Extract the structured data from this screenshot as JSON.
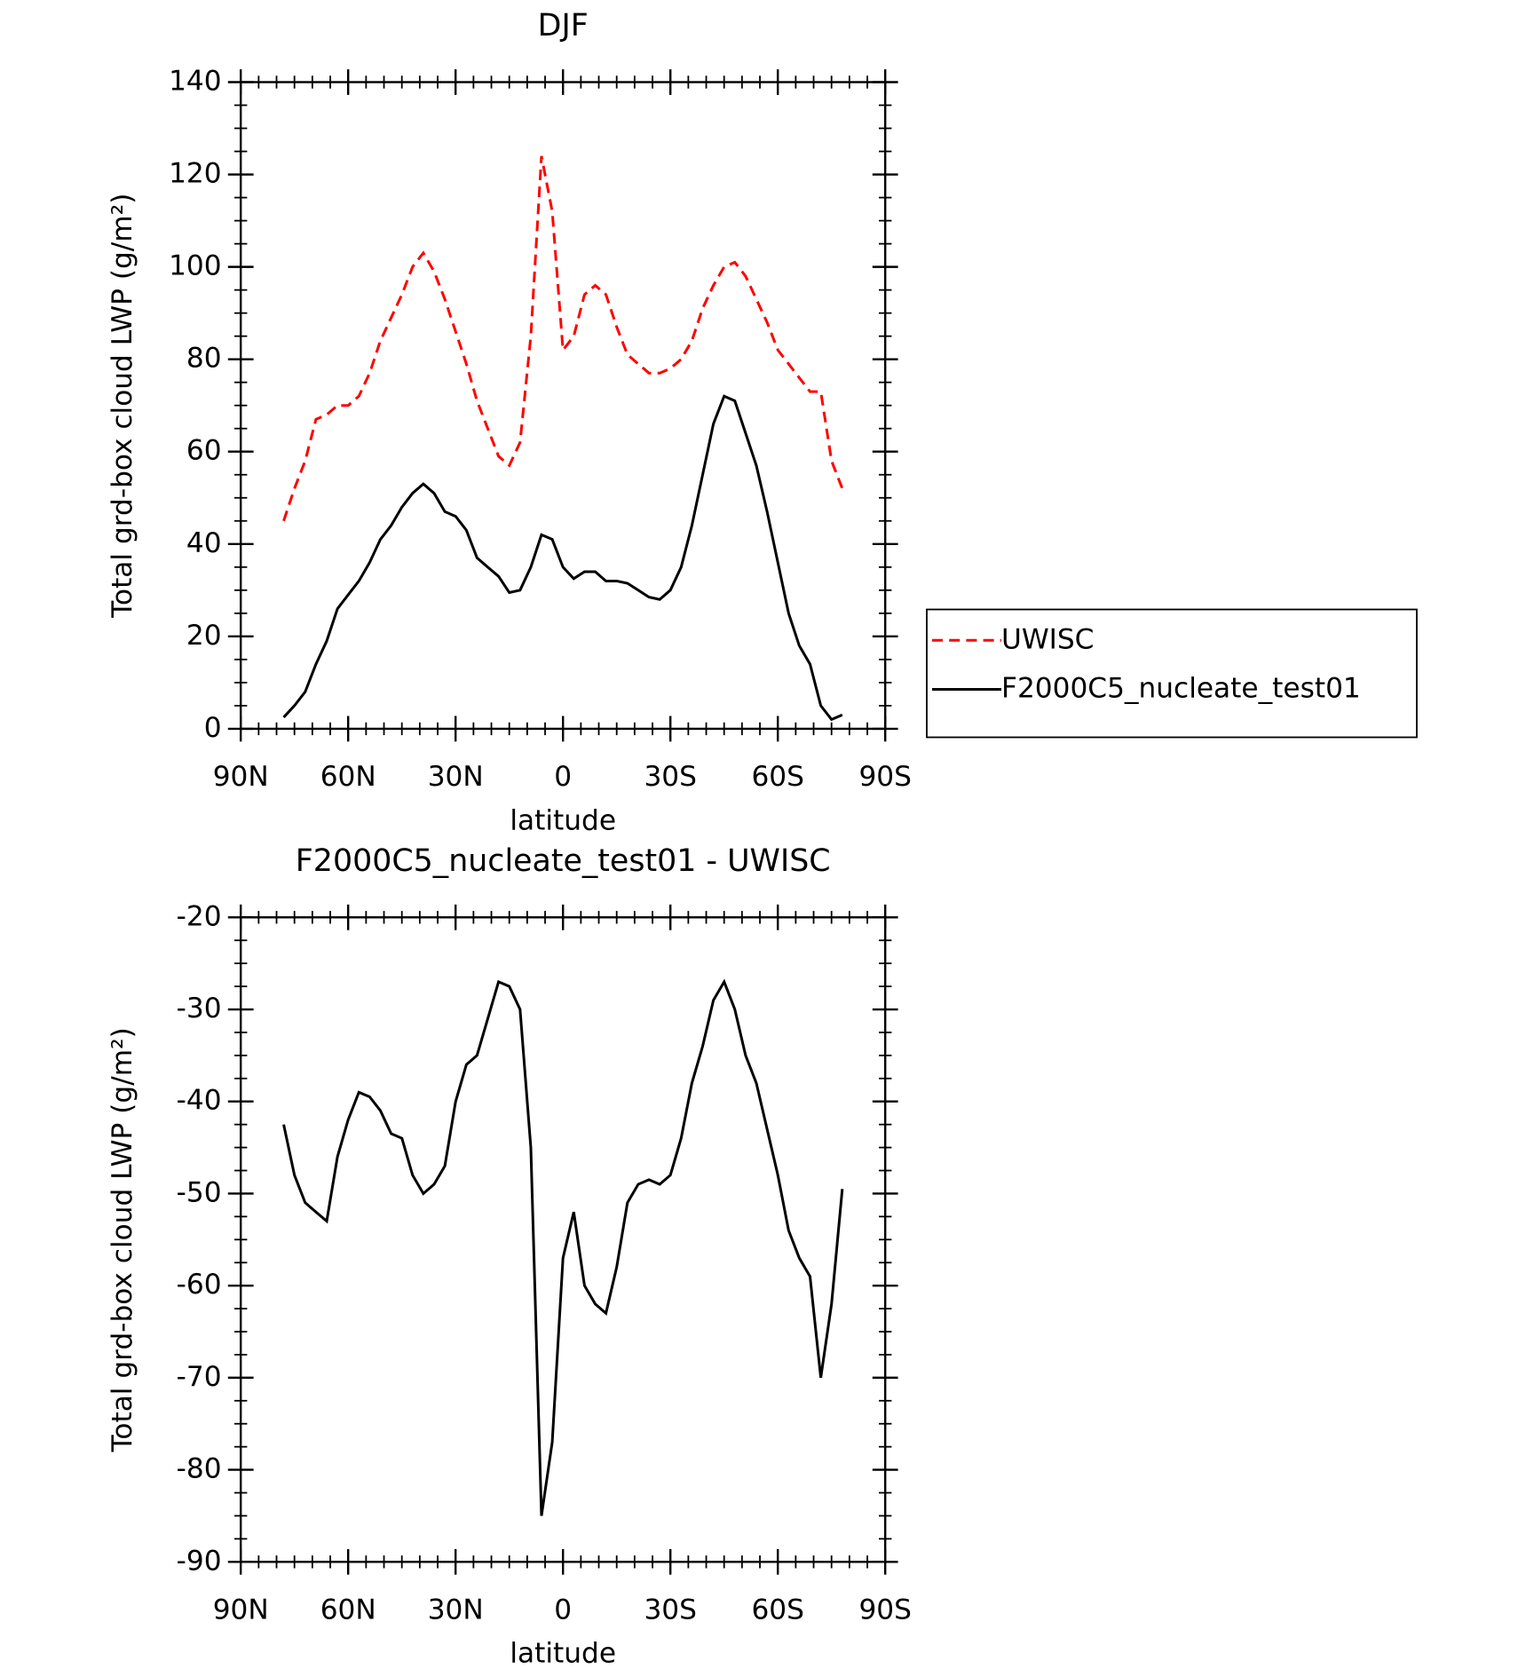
{
  "chart_data": [
    {
      "type": "line",
      "title": "DJF",
      "x_label": "latitude",
      "y_label": "Total grd-box cloud LWP (g/m²)",
      "x": [
        78,
        75,
        72,
        69,
        66,
        63,
        60,
        57,
        54,
        51,
        48,
        45,
        42,
        39,
        36,
        33,
        30,
        27,
        24,
        21,
        18,
        15,
        12,
        9,
        6,
        3,
        0,
        -3,
        -6,
        -9,
        -12,
        -15,
        -18,
        -21,
        -24,
        -27,
        -30,
        -33,
        -36,
        -39,
        -42,
        -45,
        -48,
        -51,
        -54,
        -57,
        -60,
        -63,
        -66,
        -69,
        -72,
        -75,
        -78
      ],
      "xlim": [
        90,
        -90
      ],
      "xticks": [
        {
          "value": 90,
          "label": "90N"
        },
        {
          "value": 60,
          "label": "60N"
        },
        {
          "value": 30,
          "label": "30N"
        },
        0,
        {
          "value": -30,
          "label": "30S"
        },
        {
          "value": -60,
          "label": "60S"
        },
        {
          "value": -90,
          "label": "90S"
        }
      ],
      "ylim": [
        0,
        140
      ],
      "yticks": [
        0,
        20,
        40,
        60,
        80,
        100,
        120,
        140
      ],
      "legend": "right",
      "series": [
        {
          "name": "UWISC",
          "color": "#ff0000",
          "style": "dashed",
          "values": [
            45,
            52,
            58,
            67,
            68,
            70,
            70,
            72,
            77,
            84,
            89,
            94,
            100,
            103,
            99,
            93,
            86,
            79,
            71,
            65,
            59,
            57,
            62,
            85,
            124,
            112,
            82,
            85,
            94,
            96,
            94,
            87,
            81,
            79,
            77,
            77,
            78,
            80,
            84,
            91,
            96,
            100,
            101,
            98,
            93,
            88,
            82,
            79,
            76,
            73,
            73,
            58,
            52
          ]
        },
        {
          "name": "F2000C5_nucleate_test01",
          "color": "#000000",
          "style": "solid",
          "values": [
            2.5,
            5,
            8,
            14,
            19,
            26,
            29,
            32,
            36,
            41,
            44,
            48,
            51,
            53,
            51,
            47,
            46,
            43,
            37,
            35,
            33,
            29.5,
            30,
            35,
            42,
            41,
            35,
            32.5,
            34,
            34,
            32,
            32,
            31.5,
            30,
            28.5,
            28,
            30,
            35,
            44,
            55,
            66,
            72,
            71,
            64,
            57,
            47,
            36,
            25,
            18,
            14,
            5,
            2,
            3
          ]
        }
      ]
    },
    {
      "type": "line",
      "title": "F2000C5_nucleate_test01 - UWISC",
      "x_label": "latitude",
      "y_label": "Total grd-box cloud LWP (g/m²)",
      "x": [
        78,
        75,
        72,
        69,
        66,
        63,
        60,
        57,
        54,
        51,
        48,
        45,
        42,
        39,
        36,
        33,
        30,
        27,
        24,
        21,
        18,
        15,
        12,
        9,
        6,
        3,
        0,
        -3,
        -6,
        -9,
        -12,
        -15,
        -18,
        -21,
        -24,
        -27,
        -30,
        -33,
        -36,
        -39,
        -42,
        -45,
        -48,
        -51,
        -54,
        -57,
        -60,
        -63,
        -66,
        -69,
        -72,
        -75,
        -78
      ],
      "xlim": [
        90,
        -90
      ],
      "xticks": [
        {
          "value": 90,
          "label": "90N"
        },
        {
          "value": 60,
          "label": "60N"
        },
        {
          "value": 30,
          "label": "30N"
        },
        0,
        {
          "value": -30,
          "label": "30S"
        },
        {
          "value": -60,
          "label": "60S"
        },
        {
          "value": -90,
          "label": "90S"
        }
      ],
      "ylim": [
        -90,
        -20
      ],
      "yticks": [
        -90,
        -80,
        -70,
        -60,
        -50,
        -40,
        -30,
        -20
      ],
      "color": "#000000",
      "values": [
        -42.5,
        -48,
        -51,
        -52,
        -53,
        -46,
        -42,
        -39,
        -39.5,
        -41,
        -43.5,
        -44,
        -48,
        -50,
        -49,
        -47,
        -40,
        -36,
        -35,
        -31,
        -27,
        -27.5,
        -30,
        -45,
        -85,
        -77,
        -57,
        -52,
        -60,
        -62,
        -63,
        -58,
        -51,
        -49,
        -48.5,
        -49,
        -48,
        -44,
        -38,
        -34,
        -29,
        -27,
        -30,
        -35,
        -38,
        -43,
        -48,
        -54,
        -57,
        -59,
        -70,
        -62,
        -49.5
      ]
    }
  ]
}
